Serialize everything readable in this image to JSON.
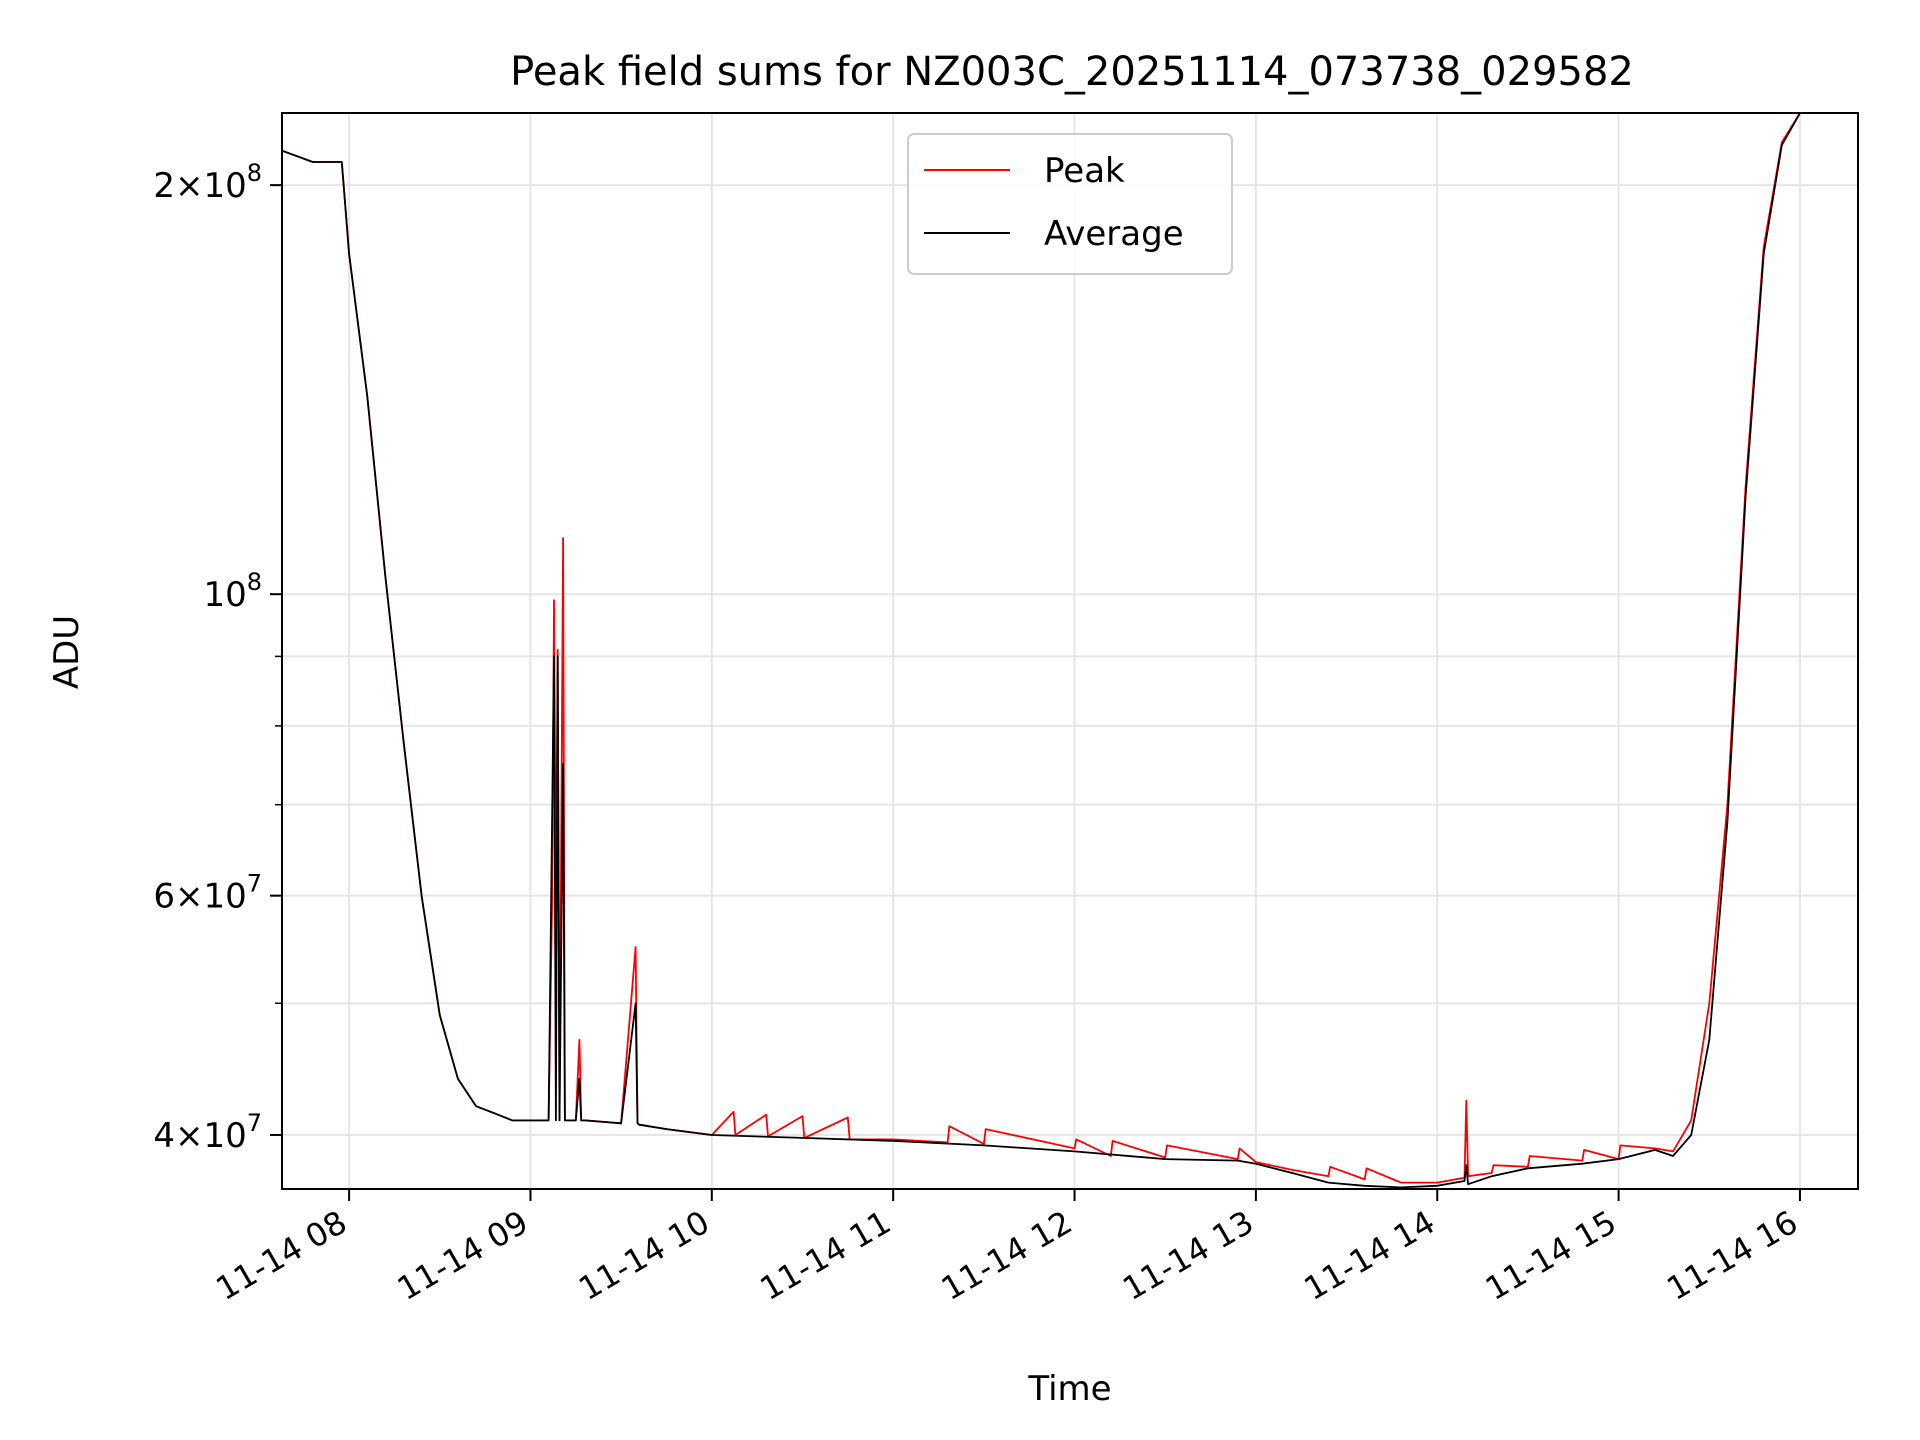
{
  "chart_data": {
    "type": "line",
    "title": "Peak field sums for NZ003C_20251114_073738_029582",
    "xlabel": "Time",
    "ylabel": "ADU",
    "yscale": "log",
    "ylim": [
      36500000,
      226000000
    ],
    "xlim_hours": [
      7.63,
      16.32
    ],
    "grid": true,
    "legend_position": "upper-center",
    "x_ticks": [
      {
        "value": 8,
        "label": "11-14 08"
      },
      {
        "value": 9,
        "label": "11-14 09"
      },
      {
        "value": 10,
        "label": "11-14 10"
      },
      {
        "value": 11,
        "label": "11-14 11"
      },
      {
        "value": 12,
        "label": "11-14 12"
      },
      {
        "value": 13,
        "label": "11-14 13"
      },
      {
        "value": 14,
        "label": "11-14 14"
      },
      {
        "value": 15,
        "label": "11-14 15"
      },
      {
        "value": 16,
        "label": "11-14 16"
      }
    ],
    "y_major_ticks": [
      {
        "value": 40000000,
        "mantissa": "4",
        "exponent": "7"
      },
      {
        "value": 60000000,
        "mantissa": "6",
        "exponent": "7"
      },
      {
        "value": 100000000,
        "mantissa": "",
        "exponent": "8"
      },
      {
        "value": 200000000,
        "mantissa": "2",
        "exponent": "8"
      }
    ],
    "y_minor_ticks": [
      50000000,
      70000000,
      80000000,
      90000000
    ],
    "series": [
      {
        "name": "Peak",
        "color": "#ff0000",
        "x": [
          7.63,
          7.8,
          7.96,
          8.0,
          8.1,
          8.2,
          8.3,
          8.4,
          8.5,
          8.6,
          8.7,
          8.8,
          8.9,
          9.0,
          9.1,
          9.12,
          9.13,
          9.14,
          9.15,
          9.16,
          9.18,
          9.19,
          9.2,
          9.25,
          9.27,
          9.28,
          9.3,
          9.5,
          9.58,
          9.59,
          9.6,
          9.75,
          10.0,
          10.12,
          10.13,
          10.3,
          10.31,
          10.5,
          10.51,
          10.75,
          10.76,
          11.0,
          11.3,
          11.31,
          11.5,
          11.51,
          12.0,
          12.01,
          12.2,
          12.21,
          12.5,
          12.51,
          12.9,
          12.91,
          13.0,
          13.2,
          13.4,
          13.41,
          13.6,
          13.61,
          13.8,
          14.0,
          14.1,
          14.15,
          14.16,
          14.17,
          14.3,
          14.31,
          14.5,
          14.51,
          14.8,
          14.81,
          15.0,
          15.01,
          15.2,
          15.3,
          15.4,
          15.5,
          15.6,
          15.7,
          15.8,
          15.9,
          16.0,
          16.1,
          16.2,
          16.32
        ],
        "y": [
          212000000,
          208000000,
          208000000,
          178000000,
          140000000,
          103000000,
          78000000,
          60000000,
          49000000,
          44000000,
          42000000,
          41500000,
          41000000,
          41000000,
          41000000,
          60000000,
          99000000,
          58000000,
          91000000,
          41000000,
          110000000,
          41000000,
          41000000,
          41000000,
          47000000,
          41000000,
          41000000,
          40800000,
          55000000,
          40800000,
          40700000,
          40400000,
          40000000,
          41600000,
          40000000,
          41400000,
          39900000,
          41300000,
          39800000,
          41200000,
          39700000,
          39700000,
          39500000,
          40600000,
          39400000,
          40400000,
          39100000,
          39700000,
          38600000,
          39600000,
          38500000,
          39300000,
          38400000,
          39100000,
          38200000,
          37700000,
          37300000,
          37900000,
          37100000,
          37800000,
          36900000,
          36900000,
          37100000,
          37200000,
          42400000,
          37300000,
          37500000,
          38000000,
          37900000,
          38600000,
          38300000,
          39000000,
          38400000,
          39300000,
          39100000,
          38900000,
          41000000,
          50000000,
          70000000,
          120000000,
          180000000,
          215000000,
          226000000,
          226000000,
          226000000,
          226000000
        ]
      },
      {
        "name": "Average",
        "color": "#000000",
        "x": [
          7.63,
          7.8,
          7.96,
          8.0,
          8.1,
          8.2,
          8.3,
          8.4,
          8.5,
          8.6,
          8.7,
          8.8,
          8.9,
          9.0,
          9.1,
          9.13,
          9.14,
          9.15,
          9.16,
          9.18,
          9.19,
          9.2,
          9.25,
          9.27,
          9.28,
          9.3,
          9.5,
          9.58,
          9.59,
          9.6,
          9.75,
          10.0,
          10.5,
          11.0,
          11.5,
          12.0,
          12.5,
          12.9,
          13.0,
          13.2,
          13.4,
          13.6,
          13.8,
          14.0,
          14.15,
          14.16,
          14.17,
          14.3,
          14.5,
          14.8,
          15.0,
          15.2,
          15.3,
          15.4,
          15.5,
          15.6,
          15.7,
          15.8,
          15.9,
          16.0,
          16.1,
          16.2,
          16.32
        ],
        "y": [
          212000000,
          208000000,
          208000000,
          178000000,
          140000000,
          103000000,
          78000000,
          60000000,
          49000000,
          44000000,
          42000000,
          41500000,
          41000000,
          41000000,
          41000000,
          90000000,
          41000000,
          90000000,
          41000000,
          75000000,
          41000000,
          41000000,
          41000000,
          44000000,
          41000000,
          41000000,
          40800000,
          50000000,
          40800000,
          40700000,
          40400000,
          40000000,
          39800000,
          39600000,
          39300000,
          38900000,
          38400000,
          38300000,
          38100000,
          37500000,
          36900000,
          36700000,
          36600000,
          36700000,
          37000000,
          38000000,
          36800000,
          37300000,
          37800000,
          38100000,
          38400000,
          39000000,
          38600000,
          40000000,
          47000000,
          68000000,
          118000000,
          178000000,
          214000000,
          226000000,
          226000000,
          226000000,
          226000000
        ]
      }
    ]
  }
}
